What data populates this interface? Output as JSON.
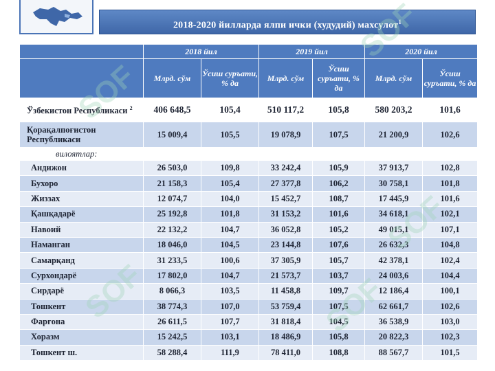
{
  "title": {
    "text": "2018-2020 йилларда ялпи ички (худудий) махсулот",
    "footnote_mark": "1"
  },
  "colors": {
    "header_bg": "#4f7bbf",
    "row_dark": "#c8d6ec",
    "row_light": "#e6ecf6",
    "title_bar": "#4a74b6"
  },
  "watermark": "SOF",
  "table": {
    "years": [
      "2018 йил",
      "2019 йил",
      "2020 йил"
    ],
    "subheaders": {
      "volume": "Млрд. сўм",
      "growth": "Ўсиш суръати, % да"
    },
    "total": {
      "name": "Ўзбекистон Республикаси",
      "footnote_mark": "2",
      "values": [
        "406 648,5",
        "105,4",
        "510 117,2",
        "105,8",
        "580 203,2",
        "101,6"
      ]
    },
    "karakalpak": {
      "name": "Қорақалпоғистон Республикаси",
      "values": [
        "15 009,4",
        "105,5",
        "19 078,9",
        "107,5",
        "21 200,9",
        "102,6"
      ]
    },
    "regions_label": "вилоятлар:",
    "rows": [
      {
        "name": "Андижон",
        "values": [
          "26 503,0",
          "109,8",
          "33 242,4",
          "105,9",
          "37 913,7",
          "102,8"
        ]
      },
      {
        "name": "Бухоро",
        "values": [
          "21 158,3",
          "105,4",
          "27 377,8",
          "106,2",
          "30 758,1",
          "101,8"
        ]
      },
      {
        "name": "Жиззах",
        "values": [
          "12 074,7",
          "104,0",
          "15 452,7",
          "108,7",
          "17 445,9",
          "101,6"
        ]
      },
      {
        "name": "Қашқадарё",
        "values": [
          "25 192,8",
          "101,8",
          "31 153,2",
          "101,6",
          "34 618,1",
          "102,1"
        ]
      },
      {
        "name": "Навоий",
        "values": [
          "22 132,2",
          "104,7",
          "36 052,8",
          "105,2",
          "49 015,1",
          "107,1"
        ]
      },
      {
        "name": "Наманган",
        "values": [
          "18 046,0",
          "104,5",
          "23 144,8",
          "107,6",
          "26 632,3",
          "104,8"
        ]
      },
      {
        "name": "Самарқанд",
        "values": [
          "31 233,5",
          "100,6",
          "37 305,9",
          "105,7",
          "42 378,1",
          "102,4"
        ]
      },
      {
        "name": "Сурхондарё",
        "values": [
          "17 802,0",
          "104,7",
          "21 573,7",
          "103,7",
          "24 003,6",
          "104,4"
        ]
      },
      {
        "name": "Сирдарё",
        "values": [
          "8 066,3",
          "103,5",
          "11 458,8",
          "109,7",
          "12 186,4",
          "100,1"
        ]
      },
      {
        "name": "Тошкент",
        "values": [
          "38 774,3",
          "107,0",
          "53 759,4",
          "107,5",
          "62 661,7",
          "102,6"
        ]
      },
      {
        "name": "Фарғона",
        "values": [
          "26 611,5",
          "107,7",
          "31 818,4",
          "104,5",
          "36 538,9",
          "103,0"
        ]
      },
      {
        "name": "Хоразм",
        "values": [
          "15 242,5",
          "103,1",
          "18 486,9",
          "105,8",
          "20 822,3",
          "102,3"
        ]
      },
      {
        "name": "Тошкент ш.",
        "values": [
          "58 288,4",
          "111,9",
          "78 411,0",
          "108,8",
          "88 567,7",
          "101,5"
        ]
      }
    ]
  }
}
